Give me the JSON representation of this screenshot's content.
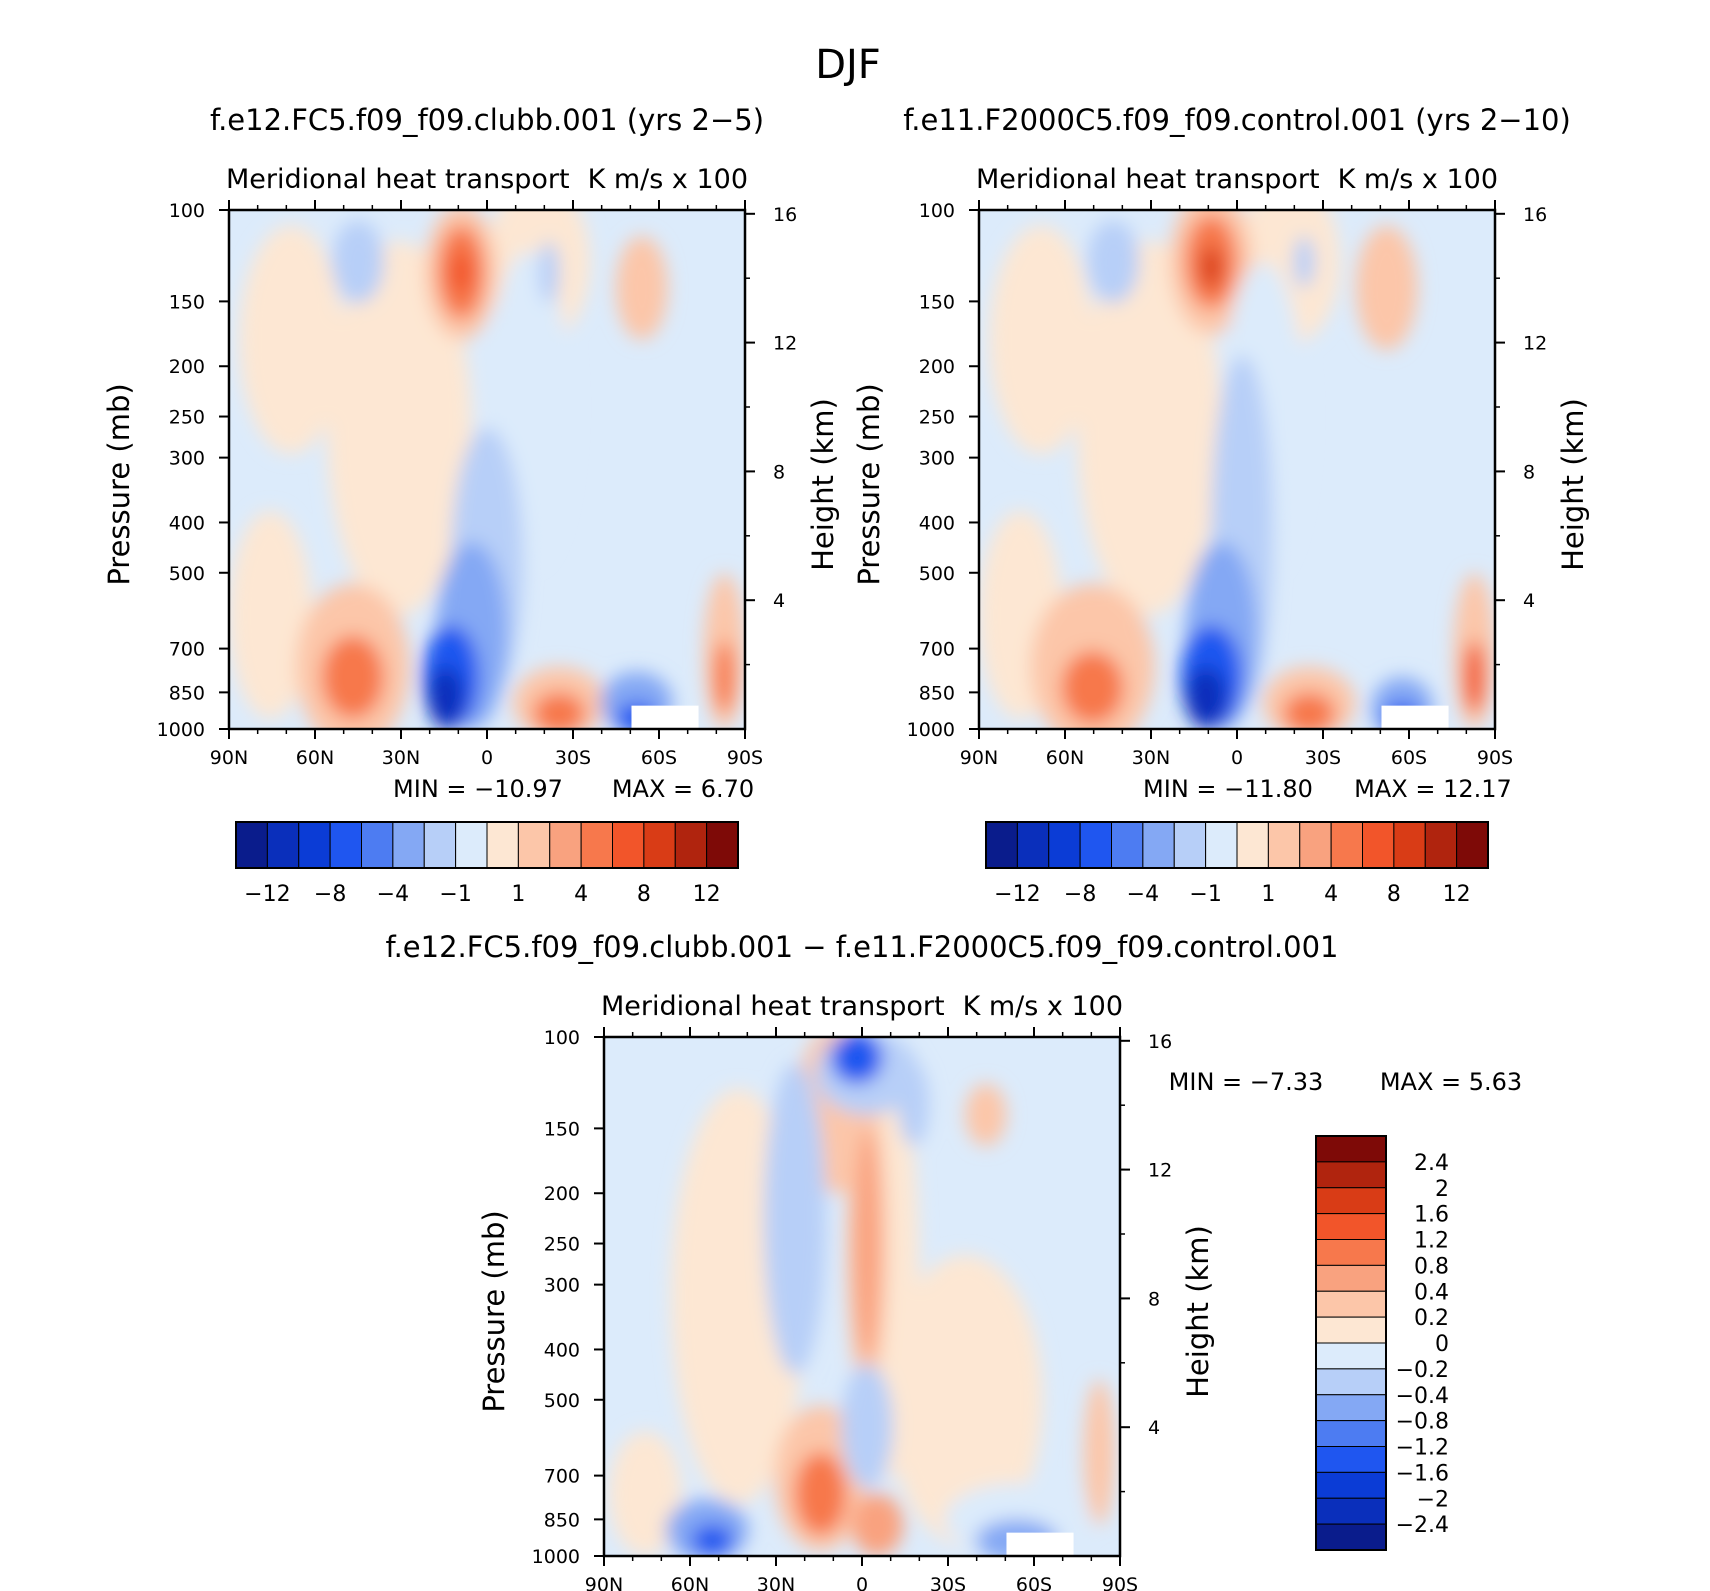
{
  "figure": {
    "title": "DJF"
  },
  "chart_data": [
    {
      "type": "heatmap",
      "title": "f.e12.FC5.f09_f09.clubb.001 (yrs 2−5)",
      "subtitle_left": "Meridional heat transport",
      "subtitle_right": "K m/s x 100",
      "xlabel": "",
      "ylabel": "Pressure (mb)",
      "ylabel_right": "Height (km)",
      "x_ticks": [
        "90N",
        "60N",
        "30N",
        "0",
        "30S",
        "60S",
        "90S"
      ],
      "y_ticks": [
        "100",
        "150",
        "200",
        "250",
        "300",
        "400",
        "500",
        "700",
        "850",
        "1000"
      ],
      "y_ticks_right": [
        "16",
        "12",
        "8",
        "4"
      ],
      "min_label": "MIN = −10.97",
      "max_label": "MAX = 6.70",
      "colorbar_labels": [
        "−12",
        "−8",
        "−4",
        "−1",
        "1",
        "4",
        "8",
        "12"
      ],
      "colorbar_colors": [
        "#0a1c8c",
        "#0a2fbb",
        "#0b3cd6",
        "#1f56f0",
        "#4d7cf2",
        "#84a8f4",
        "#b7cff8",
        "#dcebfb",
        "#fde7d3",
        "#fcc6a9",
        "#f9a27f",
        "#f7784c",
        "#f2552a",
        "#d93c16",
        "#b0240e",
        "#7e0a07"
      ],
      "features": [
        {
          "label": "upper-level maximum near 15N",
          "value": 6.7
        },
        {
          "label": "low-level minimum near 10N",
          "value": -10.97
        }
      ]
    },
    {
      "type": "heatmap",
      "title": "f.e11.F2000C5.f09_f09.control.001 (yrs 2−10)",
      "subtitle_left": "Meridional heat transport",
      "subtitle_right": "K m/s x 100",
      "xlabel": "",
      "ylabel": "Pressure (mb)",
      "ylabel_right": "Height (km)",
      "x_ticks": [
        "90N",
        "60N",
        "30N",
        "0",
        "30S",
        "60S",
        "90S"
      ],
      "y_ticks": [
        "100",
        "150",
        "200",
        "250",
        "300",
        "400",
        "500",
        "700",
        "850",
        "1000"
      ],
      "y_ticks_right": [
        "16",
        "12",
        "8",
        "4"
      ],
      "min_label": "MIN = −11.80",
      "max_label": "MAX = 12.17",
      "colorbar_labels": [
        "−12",
        "−8",
        "−4",
        "−1",
        "1",
        "4",
        "8",
        "12"
      ],
      "colorbar_colors": [
        "#0a1c8c",
        "#0a2fbb",
        "#0b3cd6",
        "#1f56f0",
        "#4d7cf2",
        "#84a8f4",
        "#b7cff8",
        "#dcebfb",
        "#fde7d3",
        "#fcc6a9",
        "#f9a27f",
        "#f7784c",
        "#f2552a",
        "#d93c16",
        "#b0240e",
        "#7e0a07"
      ],
      "features": [
        {
          "label": "upper-level maximum near 15N",
          "value": 12.17
        },
        {
          "label": "low-level minimum near 10N",
          "value": -11.8
        }
      ]
    },
    {
      "type": "heatmap",
      "title": "f.e12.FC5.f09_f09.clubb.001 − f.e11.F2000C5.f09_f09.control.001",
      "subtitle_left": "Meridional heat transport",
      "subtitle_right": "K m/s x 100",
      "xlabel": "",
      "ylabel": "Pressure (mb)",
      "ylabel_right": "Height (km)",
      "x_ticks": [
        "90N",
        "60N",
        "30N",
        "0",
        "30S",
        "60S",
        "90S"
      ],
      "y_ticks": [
        "100",
        "150",
        "200",
        "250",
        "300",
        "400",
        "500",
        "700",
        "850",
        "1000"
      ],
      "y_ticks_right": [
        "16",
        "12",
        "8",
        "4"
      ],
      "min_label": "MIN = −7.33",
      "max_label": "MAX = 5.63",
      "colorbar_labels": [
        "2.4",
        "2",
        "1.6",
        "1.2",
        "0.8",
        "0.4",
        "0.2",
        "0",
        "−0.2",
        "−0.4",
        "−0.8",
        "−1.2",
        "−1.6",
        "−2",
        "−2.4"
      ],
      "colorbar_colors": [
        "#7e0a07",
        "#b0240e",
        "#d93c16",
        "#f2552a",
        "#f7784c",
        "#f9a27f",
        "#fcc6a9",
        "#fde7d3",
        "#dcebfb",
        "#b7cff8",
        "#84a8f4",
        "#4d7cf2",
        "#1f56f0",
        "#0b3cd6",
        "#0a2fbb",
        "#0a1c8c"
      ],
      "features": [
        {
          "label": "low-level difference maximum near 15N",
          "value": 5.63
        },
        {
          "label": "low-level difference minimum near 55N",
          "value": -7.33
        }
      ]
    }
  ]
}
